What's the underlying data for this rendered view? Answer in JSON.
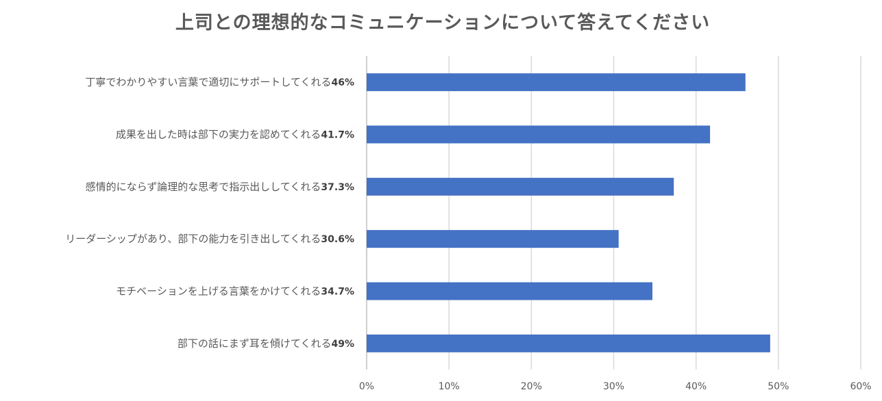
{
  "chart_data": {
    "type": "bar",
    "orientation": "horizontal",
    "title": "上司との理想的なコミュニケーションについて答えてください",
    "categories": [
      "丁寧でわかりやすい言葉で適切にサポートしてくれる",
      "成果を出した時は部下の実力を認めてくれる",
      "感情的にならず論理的な思考で指示出ししてくれる",
      "リーダーシップがあり、部下の能力を引き出してくれる",
      "モチベーションを上げる言葉をかけてくれる",
      "部下の話にまず耳を傾けてくれる"
    ],
    "values": [
      46,
      41.7,
      37.3,
      30.6,
      34.7,
      49
    ],
    "value_labels": [
      "46%",
      "41.7%",
      "37.3%",
      "30.6%",
      "34.7%",
      "49%"
    ],
    "xlim": [
      0,
      60
    ],
    "xticks": [
      "0%",
      "10%",
      "20%",
      "30%",
      "40%",
      "50%",
      "60%"
    ],
    "xlabel": "",
    "ylabel": "",
    "grid": "vertical",
    "legend": "none",
    "bar_color": "#4472c4"
  }
}
